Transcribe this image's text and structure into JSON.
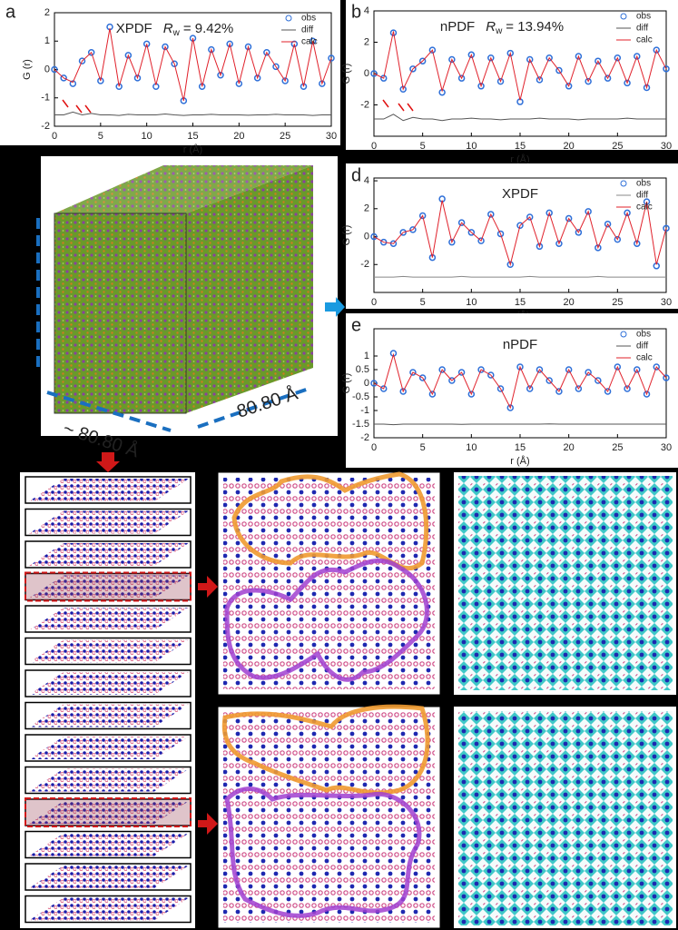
{
  "chart_data": [
    {
      "type": "line",
      "panel_label": "a",
      "title": "XPDF",
      "rw_symbol": "R",
      "rw_subscript": "w",
      "rw_value": "= 9.42%",
      "xlabel": "r (Å)",
      "ylabel": "G (r)",
      "x": [
        0,
        1,
        2,
        3,
        4,
        5,
        6,
        7,
        8,
        9,
        10,
        11,
        12,
        13,
        14,
        15,
        16,
        17,
        18,
        19,
        20,
        21,
        22,
        23,
        24,
        25,
        26,
        27,
        28,
        29,
        30
      ],
      "xlim": [
        0,
        30
      ],
      "xticks": [
        0,
        5,
        10,
        15,
        20,
        25,
        30
      ],
      "ylim": [
        -2,
        2
      ],
      "yticks": [
        -2,
        -1,
        0,
        1,
        2
      ],
      "series": [
        {
          "name": "obs",
          "color": "#2e6fd8",
          "style": "markers",
          "values": [
            0,
            -0.3,
            -0.5,
            0.3,
            0.6,
            -0.4,
            1.5,
            -0.6,
            0.5,
            -0.3,
            0.9,
            -0.6,
            0.8,
            0.2,
            -1.1,
            1.1,
            -0.6,
            0.7,
            -0.2,
            0.9,
            -0.5,
            0.8,
            -0.3,
            0.6,
            0.1,
            -0.4,
            0.9,
            -0.6,
            1.0,
            -0.5,
            0.4
          ]
        },
        {
          "name": "diff",
          "color": "#555555",
          "style": "line",
          "values": [
            -1.6,
            -1.6,
            -1.5,
            -1.6,
            -1.55,
            -1.6,
            -1.6,
            -1.62,
            -1.58,
            -1.6,
            -1.6,
            -1.6,
            -1.57,
            -1.6,
            -1.62,
            -1.6,
            -1.6,
            -1.58,
            -1.6,
            -1.6,
            -1.6,
            -1.61,
            -1.6,
            -1.6,
            -1.58,
            -1.6,
            -1.6,
            -1.6,
            -1.62,
            -1.6,
            -1.6
          ]
        },
        {
          "name": "calc",
          "color": "#e0202a",
          "style": "line",
          "values": [
            0,
            -0.3,
            -0.45,
            0.3,
            0.6,
            -0.4,
            1.45,
            -0.6,
            0.5,
            -0.3,
            0.9,
            -0.55,
            0.8,
            0.2,
            -1.1,
            1.1,
            -0.6,
            0.7,
            -0.2,
            0.9,
            -0.5,
            0.8,
            -0.3,
            0.6,
            0.1,
            -0.4,
            0.9,
            -0.6,
            1.0,
            -0.5,
            0.4
          ]
        }
      ]
    },
    {
      "type": "line",
      "panel_label": "b",
      "title": "nPDF",
      "rw_symbol": "R",
      "rw_subscript": "w",
      "rw_value": "= 13.94%",
      "xlabel": "r (Å)",
      "ylabel": "G (r)",
      "x": [
        0,
        1,
        2,
        3,
        4,
        5,
        6,
        7,
        8,
        9,
        10,
        11,
        12,
        13,
        14,
        15,
        16,
        17,
        18,
        19,
        20,
        21,
        22,
        23,
        24,
        25,
        26,
        27,
        28,
        29,
        30
      ],
      "xlim": [
        0,
        30
      ],
      "xticks": [
        0,
        5,
        10,
        15,
        20,
        25,
        30
      ],
      "ylim": [
        -4,
        4
      ],
      "yticks": [
        -2,
        0,
        2,
        4
      ],
      "series": [
        {
          "name": "obs",
          "color": "#2e6fd8",
          "style": "markers",
          "values": [
            0,
            -0.3,
            2.6,
            -1.0,
            0.3,
            0.8,
            1.5,
            -1.2,
            0.9,
            -0.3,
            1.2,
            -0.8,
            1.0,
            -0.5,
            1.3,
            -1.8,
            0.9,
            -0.4,
            1.0,
            0.2,
            -0.8,
            1.1,
            -0.5,
            0.8,
            -0.3,
            1.0,
            -0.6,
            1.1,
            -0.9,
            1.5,
            0.3
          ]
        },
        {
          "name": "diff",
          "color": "#555555",
          "style": "line",
          "values": [
            -2.9,
            -2.9,
            -2.6,
            -3.0,
            -2.8,
            -2.9,
            -2.9,
            -3.0,
            -2.9,
            -2.9,
            -2.85,
            -2.9,
            -2.9,
            -2.95,
            -2.9,
            -2.9,
            -2.9,
            -2.85,
            -2.9,
            -2.9,
            -2.9,
            -2.95,
            -2.9,
            -2.9,
            -2.9,
            -2.9,
            -2.85,
            -2.9,
            -2.9,
            -2.9,
            -2.9
          ]
        },
        {
          "name": "calc",
          "color": "#e0202a",
          "style": "line",
          "values": [
            0,
            -0.3,
            2.7,
            -1.0,
            0.3,
            0.8,
            1.5,
            -1.1,
            0.9,
            -0.3,
            1.2,
            -0.8,
            1.0,
            -0.5,
            1.3,
            -1.7,
            0.9,
            -0.4,
            1.0,
            0.2,
            -0.8,
            1.1,
            -0.5,
            0.8,
            -0.3,
            1.0,
            -0.6,
            1.1,
            -0.9,
            1.5,
            0.3
          ]
        }
      ]
    },
    {
      "type": "line",
      "panel_label": "d",
      "title": "XPDF",
      "xlabel": "r (Å)",
      "ylabel": "G (r)",
      "x": [
        0,
        1,
        2,
        3,
        4,
        5,
        6,
        7,
        8,
        9,
        10,
        11,
        12,
        13,
        14,
        15,
        16,
        17,
        18,
        19,
        20,
        21,
        22,
        23,
        24,
        25,
        26,
        27,
        28,
        29,
        30
      ],
      "xlim": [
        0,
        30
      ],
      "xticks": [
        0,
        5,
        10,
        15,
        20,
        25,
        30
      ],
      "ylim": [
        -4,
        4.2
      ],
      "yticks": [
        -2,
        0,
        2,
        4
      ],
      "series": [
        {
          "name": "obs",
          "color": "#2e6fd8",
          "style": "markers",
          "values": [
            0,
            -0.4,
            -0.5,
            0.3,
            0.5,
            1.5,
            -1.5,
            2.7,
            -0.4,
            1.0,
            0.3,
            -0.3,
            1.6,
            0.2,
            -2.0,
            0.8,
            1.4,
            -0.7,
            1.7,
            -0.5,
            1.3,
            0.3,
            1.8,
            -0.8,
            0.9,
            -0.2,
            1.7,
            -0.5,
            2.5,
            -2.1,
            0.6
          ]
        },
        {
          "name": "diff",
          "color": "#888888",
          "style": "line",
          "values": [
            -2.9,
            -2.9,
            -2.9,
            -2.85,
            -2.9,
            -2.9,
            -2.9,
            -2.9,
            -2.9,
            -2.85,
            -2.9,
            -2.9,
            -2.9,
            -2.9,
            -2.9,
            -2.9,
            -2.85,
            -2.9,
            -2.9,
            -2.9,
            -2.9,
            -2.9,
            -2.9,
            -2.85,
            -2.9,
            -2.9,
            -2.9,
            -2.9,
            -2.9,
            -2.9,
            -2.9
          ]
        },
        {
          "name": "calc",
          "color": "#e0202a",
          "style": "line",
          "values": [
            0,
            -0.4,
            -0.5,
            0.3,
            0.5,
            1.5,
            -1.5,
            2.6,
            -0.4,
            1.0,
            0.3,
            -0.3,
            1.6,
            0.2,
            -2.0,
            0.8,
            1.4,
            -0.7,
            1.7,
            -0.5,
            1.3,
            0.3,
            1.8,
            -0.8,
            0.9,
            -0.2,
            1.7,
            -0.5,
            2.5,
            -2.0,
            0.6
          ]
        }
      ]
    },
    {
      "type": "line",
      "panel_label": "e",
      "title": "nPDF",
      "xlabel": "r (Å)",
      "ylabel": "G (r)",
      "x": [
        0,
        1,
        2,
        3,
        4,
        5,
        6,
        7,
        8,
        9,
        10,
        11,
        12,
        13,
        14,
        15,
        16,
        17,
        18,
        19,
        20,
        21,
        22,
        23,
        24,
        25,
        26,
        27,
        28,
        29,
        30
      ],
      "xlim": [
        0,
        30
      ],
      "xticks": [
        0,
        5,
        10,
        15,
        20,
        25,
        30
      ],
      "ylim": [
        -2,
        2
      ],
      "yticks": [
        -2,
        -1.5,
        -1,
        -0.5,
        0,
        0.5,
        1
      ],
      "series": [
        {
          "name": "obs",
          "color": "#2e6fd8",
          "style": "markers",
          "values": [
            0,
            -0.2,
            1.1,
            -0.3,
            0.4,
            0.2,
            -0.4,
            0.5,
            0.1,
            0.4,
            -0.4,
            0.5,
            0.3,
            -0.2,
            -0.9,
            0.6,
            -0.2,
            0.5,
            0.1,
            -0.3,
            0.5,
            -0.2,
            0.4,
            0.1,
            -0.3,
            0.6,
            -0.2,
            0.5,
            -0.4,
            0.6,
            0.2
          ]
        },
        {
          "name": "diff",
          "color": "#555555",
          "style": "line",
          "values": [
            -1.5,
            -1.5,
            -1.52,
            -1.5,
            -1.5,
            -1.5,
            -1.5,
            -1.5,
            -1.5,
            -1.51,
            -1.5,
            -1.5,
            -1.5,
            -1.5,
            -1.5,
            -1.5,
            -1.5,
            -1.5,
            -1.49,
            -1.5,
            -1.5,
            -1.5,
            -1.5,
            -1.5,
            -1.5,
            -1.5,
            -1.5,
            -1.5,
            -1.5,
            -1.5,
            -1.5
          ]
        },
        {
          "name": "calc",
          "color": "#e0202a",
          "style": "line",
          "values": [
            0,
            -0.2,
            1.05,
            -0.3,
            0.4,
            0.2,
            -0.4,
            0.5,
            0.1,
            0.4,
            -0.4,
            0.5,
            0.3,
            -0.2,
            -0.9,
            0.6,
            -0.2,
            0.5,
            0.1,
            -0.3,
            0.5,
            -0.2,
            0.4,
            0.1,
            -0.3,
            0.6,
            -0.2,
            0.5,
            -0.4,
            0.6,
            0.2
          ]
        }
      ]
    }
  ],
  "cube": {
    "edge_label": "80.80 Å",
    "edge_label_approx": "~ 80.80 Å"
  }
}
